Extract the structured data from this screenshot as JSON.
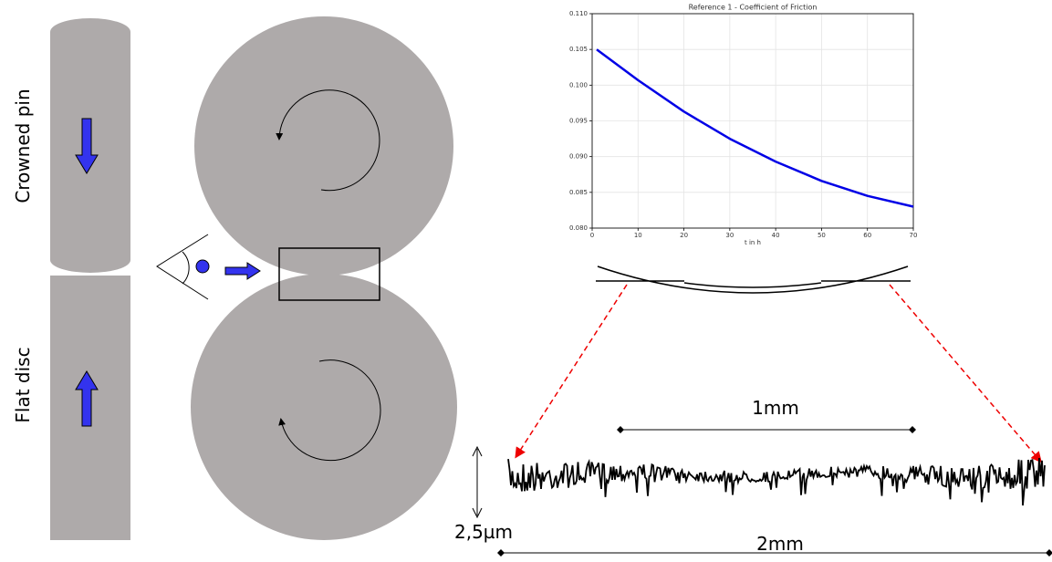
{
  "labels": {
    "pin": "Crowned pin",
    "disc": "Flat disc"
  },
  "chart_data": {
    "type": "line",
    "title": "Reference 1 - Coefficient of Friction",
    "xlabel": "t in h",
    "x": [
      1,
      10,
      20,
      30,
      40,
      50,
      60,
      70
    ],
    "values": [
      0.105,
      0.1007,
      0.0963,
      0.0925,
      0.0893,
      0.0866,
      0.0845,
      0.083
    ],
    "color": "#0000e6",
    "xlim": [
      0,
      70
    ],
    "xticks": [
      0,
      10,
      20,
      30,
      40,
      50,
      60,
      70
    ],
    "ylim": [
      0.08,
      0.11
    ],
    "yticks": [
      {
        "value": 0.08,
        "label": "0.080"
      },
      0.085,
      {
        "value": 0.09,
        "label": "0.090"
      },
      0.095,
      {
        "value": 0.1,
        "label": "0.100"
      },
      0.105,
      {
        "value": 0.11,
        "label": "0.110"
      }
    ],
    "grid": true
  },
  "annotations": {
    "short_span": "1mm",
    "long_span": "2mm",
    "height": "2,5µm"
  }
}
